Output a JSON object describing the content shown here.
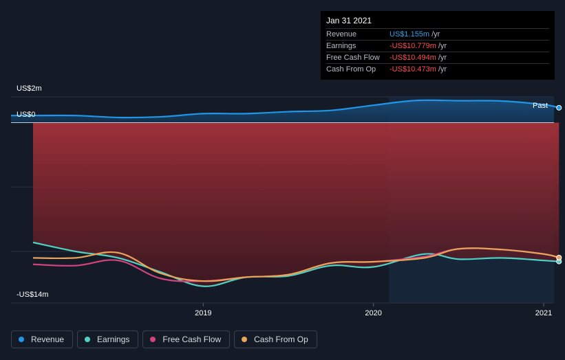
{
  "chart_data": {
    "type": "line",
    "y_unit": "US$ millions",
    "ylim": [
      -14,
      2
    ],
    "y_tick_labels": {
      "top": "US$2m",
      "zero": "US$0",
      "bottom": "-US$14m"
    },
    "x_tick_labels": [
      "2019",
      "2020",
      "2021"
    ],
    "x_ticks": [
      2019.0,
      2020.0,
      2021.0
    ],
    "xlim": [
      2017.88,
      2021.09
    ],
    "forecast_marker": {
      "label": "Past",
      "x": 2020.09
    },
    "series": [
      {
        "name": "Revenue",
        "color": "#2196e8",
        "points": [
          [
            2018.0,
            0.55
          ],
          [
            2018.25,
            0.55
          ],
          [
            2018.5,
            0.4
          ],
          [
            2018.75,
            0.45
          ],
          [
            2019.0,
            0.7
          ],
          [
            2019.25,
            0.7
          ],
          [
            2019.5,
            0.85
          ],
          [
            2019.75,
            0.95
          ],
          [
            2020.0,
            1.35
          ],
          [
            2020.25,
            1.72
          ],
          [
            2020.5,
            1.7
          ],
          [
            2020.75,
            1.68
          ],
          [
            2021.0,
            1.4
          ],
          [
            2021.09,
            1.155
          ]
        ]
      },
      {
        "name": "Earnings",
        "color": "#4fd1c5",
        "points": [
          [
            2018.0,
            -9.3
          ],
          [
            2018.25,
            -10.0
          ],
          [
            2018.5,
            -10.5
          ],
          [
            2018.75,
            -11.6
          ],
          [
            2019.0,
            -12.7
          ],
          [
            2019.25,
            -12.0
          ],
          [
            2019.5,
            -11.9
          ],
          [
            2019.75,
            -11.1
          ],
          [
            2020.0,
            -11.2
          ],
          [
            2020.3,
            -10.2
          ],
          [
            2020.5,
            -10.6
          ],
          [
            2020.75,
            -10.5
          ],
          [
            2021.0,
            -10.7
          ],
          [
            2021.09,
            -10.779
          ]
        ]
      },
      {
        "name": "Free Cash Flow",
        "color": "#d2437e",
        "points": [
          [
            2018.0,
            -11.0
          ],
          [
            2018.25,
            -11.1
          ],
          [
            2018.5,
            -10.7
          ],
          [
            2018.75,
            -12.1
          ],
          [
            2019.0,
            -12.3
          ],
          [
            2019.25,
            -12.0
          ],
          [
            2019.5,
            -11.8
          ],
          [
            2019.75,
            -10.9
          ],
          [
            2020.0,
            -10.8
          ],
          [
            2020.3,
            -10.4
          ],
          [
            2020.5,
            -9.8
          ],
          [
            2020.75,
            -9.85
          ],
          [
            2021.0,
            -10.2
          ],
          [
            2021.09,
            -10.494
          ]
        ]
      },
      {
        "name": "Cash From Op",
        "color": "#e9a45a",
        "points": [
          [
            2018.0,
            -10.5
          ],
          [
            2018.25,
            -10.5
          ],
          [
            2018.5,
            -10.1
          ],
          [
            2018.75,
            -11.7
          ],
          [
            2019.0,
            -12.3
          ],
          [
            2019.25,
            -12.0
          ],
          [
            2019.5,
            -11.8
          ],
          [
            2019.75,
            -10.9
          ],
          [
            2020.0,
            -10.8
          ],
          [
            2020.3,
            -10.5
          ],
          [
            2020.5,
            -9.8
          ],
          [
            2020.75,
            -9.85
          ],
          [
            2021.0,
            -10.2
          ],
          [
            2021.09,
            -10.473
          ]
        ]
      }
    ]
  },
  "tooltip": {
    "date": "Jan 31 2021",
    "rows": [
      {
        "label": "Revenue",
        "value": "US$1.155m",
        "unit": "/yr"
      },
      {
        "label": "Earnings",
        "value": "-US$10.779m",
        "unit": "/yr"
      },
      {
        "label": "Free Cash Flow",
        "value": "-US$10.494m",
        "unit": "/yr"
      },
      {
        "label": "Cash From Op",
        "value": "-US$10.473m",
        "unit": "/yr"
      }
    ]
  },
  "legend": [
    {
      "label": "Revenue",
      "color": "#2196e8"
    },
    {
      "label": "Earnings",
      "color": "#4fd1c5"
    },
    {
      "label": "Free Cash Flow",
      "color": "#d2437e"
    },
    {
      "label": "Cash From Op",
      "color": "#e9a45a"
    }
  ]
}
